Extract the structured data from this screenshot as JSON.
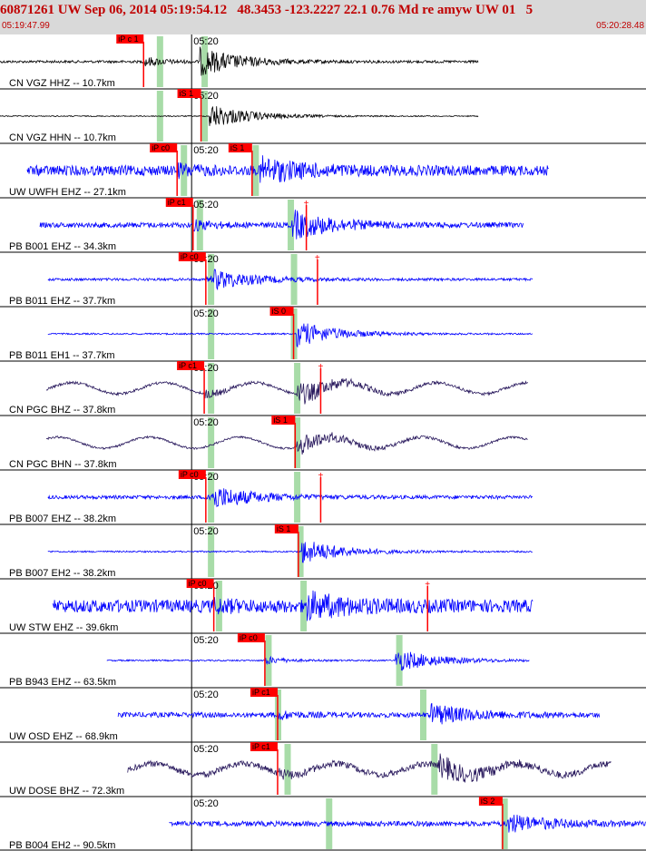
{
  "header": {
    "title": "60871261 UW Sep 06, 2014 05:19:54.12   48.3453 -123.2227 22.1 0.76 Md re amyw UW 01   5",
    "time_start": "05:19:47.99",
    "time_end": "05:20:28.48"
  },
  "tick_label": "05:20",
  "colors": {
    "background": "#ffffff",
    "header_bg": "#d9d9d9",
    "header_text": "#c00000",
    "pick": "#ff0000",
    "marker": "#a8dca8",
    "trace_black": "#000000",
    "trace_blue": "#0000ff",
    "trace_purple": "#2a1a5e"
  },
  "chart_data": {
    "type": "line",
    "title": "",
    "xlabel": "",
    "ylabel": "",
    "x_range_seconds": [
      0,
      40.49
    ],
    "tick_seconds": 12.01,
    "traces": [
      {
        "label": "CN VGZ HHZ -- 10.7km",
        "color": "black",
        "start_s": 0.0,
        "end_s": 30.0,
        "p_pick_s": 9.0,
        "p_label": "iP c 1",
        "s_pick_s": null,
        "s_label": "",
        "marker_s": [
          10.0,
          12.8
        ],
        "amplitude_noise": 0.05,
        "amplitude_event": 0.55,
        "event_s": 12.5
      },
      {
        "label": "CN VGZ HHN -- 10.7km",
        "color": "black",
        "start_s": 0.0,
        "end_s": 30.0,
        "p_pick_s": null,
        "p_label": "",
        "s_pick_s": 12.6,
        "s_label": "iS 1",
        "marker_s": [
          10.0,
          12.8
        ],
        "amplitude_noise": 0.02,
        "amplitude_event": 0.5,
        "event_s": 13.1
      },
      {
        "label": "UW UWFH EHZ -- 27.1km",
        "color": "blue",
        "start_s": 1.7,
        "end_s": 34.4,
        "p_pick_s": 11.1,
        "p_label": "iP c0",
        "s_pick_s": 15.8,
        "s_label": "iS 1",
        "marker_s": [
          11.5,
          16.0
        ],
        "amplitude_noise": 0.2,
        "amplitude_event": 0.45,
        "event_s": 16.3
      },
      {
        "label": "PB B001 EHZ -- 34.3km",
        "color": "blue",
        "start_s": 2.5,
        "end_s": 32.8,
        "p_pick_s": 12.1,
        "p_label": "iP c1",
        "s_pick_s": 19.2,
        "s_label": "",
        "marker_s": [
          12.5,
          18.2
        ],
        "amplitude_noise": 0.1,
        "amplitude_event": 0.55,
        "event_s": 18.3
      },
      {
        "label": "PB B011 EHZ -- 37.7km",
        "color": "blue",
        "start_s": 3.0,
        "end_s": 33.4,
        "p_pick_s": 12.9,
        "p_label": "iP c0",
        "s_pick_s": 19.9,
        "s_label": "",
        "marker_s": [
          13.2,
          18.4
        ],
        "amplitude_noise": 0.05,
        "amplitude_event": 0.4,
        "event_s": 13.4
      },
      {
        "label": "PB B011 EH1 -- 37.7km",
        "color": "blue",
        "start_s": 3.0,
        "end_s": 33.4,
        "p_pick_s": null,
        "p_label": "",
        "s_pick_s": 18.4,
        "s_label": "iS 0",
        "marker_s": [
          13.2,
          18.4
        ],
        "amplitude_noise": 0.03,
        "amplitude_event": 0.5,
        "event_s": 18.6
      },
      {
        "label": "CN PGC BHZ -- 37.8km",
        "color": "purple",
        "start_s": 2.9,
        "end_s": 33.1,
        "p_pick_s": 12.8,
        "p_label": "iP c1",
        "s_pick_s": 20.1,
        "s_label": "",
        "marker_s": [
          13.2,
          18.6
        ],
        "amplitude_noise": 0.05,
        "amplitude_event": 0.45,
        "event_s": 18.6
      },
      {
        "label": "CN PGC BHN -- 37.8km",
        "color": "purple",
        "start_s": 2.9,
        "end_s": 33.1,
        "p_pick_s": null,
        "p_label": "",
        "s_pick_s": 18.5,
        "s_label": "iS 1",
        "marker_s": [
          13.2,
          18.6
        ],
        "amplitude_noise": 0.04,
        "amplitude_event": 0.4,
        "event_s": 18.6
      },
      {
        "label": "PB B007 EHZ -- 38.2km",
        "color": "blue",
        "start_s": 3.0,
        "end_s": 33.4,
        "p_pick_s": 12.9,
        "p_label": "iP c0",
        "s_pick_s": 20.1,
        "s_label": "",
        "marker_s": [
          13.2,
          18.6
        ],
        "amplitude_noise": 0.07,
        "amplitude_event": 0.45,
        "event_s": 13.3
      },
      {
        "label": "PB B007 EH2 -- 38.2km",
        "color": "blue",
        "start_s": 3.0,
        "end_s": 33.4,
        "p_pick_s": null,
        "p_label": "",
        "s_pick_s": 18.7,
        "s_label": "iS 1",
        "marker_s": [
          13.2,
          18.8
        ],
        "amplitude_noise": 0.03,
        "amplitude_event": 0.5,
        "event_s": 18.9
      },
      {
        "label": "UW STW EHZ -- 39.6km",
        "color": "blue",
        "start_s": 3.3,
        "end_s": 33.4,
        "p_pick_s": 13.4,
        "p_label": "iP c0",
        "s_pick_s": 26.8,
        "s_label": "",
        "marker_s": [
          13.7,
          19.0
        ],
        "amplitude_noise": 0.25,
        "amplitude_event": 0.45,
        "event_s": 19.1
      },
      {
        "label": "PB B943 EHZ -- 63.5km",
        "color": "blue",
        "start_s": 6.7,
        "end_s": 33.2,
        "p_pick_s": 16.6,
        "p_label": "iP c0",
        "s_pick_s": null,
        "s_label": "",
        "marker_s": [
          16.8,
          25.0
        ],
        "amplitude_noise": 0.03,
        "amplitude_event": 0.45,
        "event_s": 24.8
      },
      {
        "label": "UW OSD EHZ -- 68.9km",
        "color": "blue",
        "start_s": 7.4,
        "end_s": 37.6,
        "p_pick_s": 17.4,
        "p_label": "iP c1",
        "s_pick_s": null,
        "s_label": "",
        "marker_s": [
          17.4,
          26.5
        ],
        "amplitude_noise": 0.1,
        "amplitude_event": 0.4,
        "event_s": 27.0
      },
      {
        "label": "UW DOSE BHZ -- 72.3km",
        "color": "purple",
        "start_s": 8.0,
        "end_s": 38.3,
        "p_pick_s": 17.4,
        "p_label": "iP c1",
        "s_pick_s": null,
        "s_label": "",
        "marker_s": [
          18.0,
          27.2
        ],
        "amplitude_noise": 0.12,
        "amplitude_event": 0.4,
        "event_s": 27.5
      },
      {
        "label": "PB B004 EH2 -- 90.5km",
        "color": "blue",
        "start_s": 10.6,
        "end_s": 40.49,
        "p_pick_s": null,
        "p_label": "",
        "s_pick_s": 31.5,
        "s_label": "iS 2",
        "marker_s": [
          20.6,
          31.6
        ],
        "amplitude_noise": 0.1,
        "amplitude_event": 0.35,
        "event_s": 31.8
      }
    ]
  }
}
